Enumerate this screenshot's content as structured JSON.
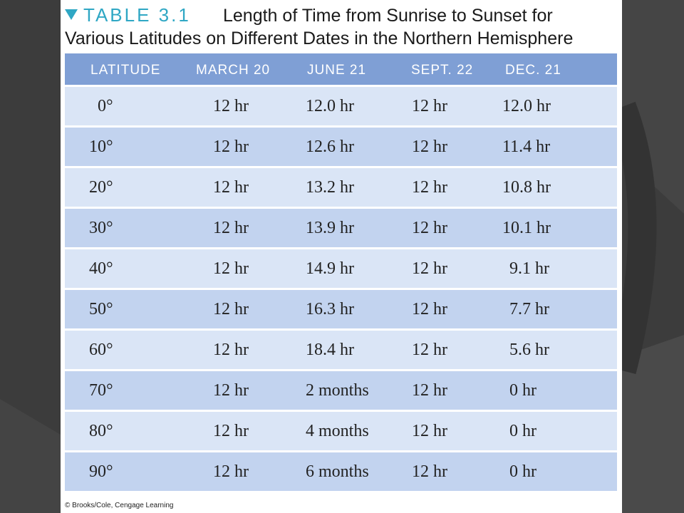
{
  "title": {
    "table_label": "TABLE 3.1",
    "caption_line1": "Length of Time from Sunrise to Sunset for",
    "caption_line2": "Various Latitudes on Different Dates in the Northern Hemisphere"
  },
  "columns": [
    "LATITUDE",
    "MARCH 20",
    "JUNE 21",
    "SEPT. 22",
    "DEC. 21"
  ],
  "rows": [
    [
      "0°",
      "12 hr",
      "12.0 hr",
      "12 hr",
      "12.0 hr"
    ],
    [
      "10°",
      "12 hr",
      "12.6 hr",
      "12 hr",
      "11.4 hr"
    ],
    [
      "20°",
      "12 hr",
      "13.2 hr",
      "12 hr",
      "10.8 hr"
    ],
    [
      "30°",
      "12 hr",
      "13.9 hr",
      "12 hr",
      "10.1 hr"
    ],
    [
      "40°",
      "12 hr",
      "14.9 hr",
      "12 hr",
      "9.1 hr"
    ],
    [
      "50°",
      "12 hr",
      "16.3 hr",
      "12 hr",
      "7.7 hr"
    ],
    [
      "60°",
      "12 hr",
      "18.4 hr",
      "12 hr",
      "5.6 hr"
    ],
    [
      "70°",
      "12 hr",
      "2 months",
      "12 hr",
      "0 hr"
    ],
    [
      "80°",
      "12 hr",
      "4 months",
      "12 hr",
      "0 hr"
    ],
    [
      "90°",
      "12 hr",
      "6 months",
      "12 hr",
      "0 hr"
    ]
  ],
  "credit": "© Brooks/Cole, Cengage Learning",
  "colors": {
    "header_bg": "#7f9fd5",
    "row_light": "#dae5f6",
    "row_dark": "#c2d3ef",
    "accent": "#2fa7c4",
    "slide_bg": "#3c3c3c"
  }
}
